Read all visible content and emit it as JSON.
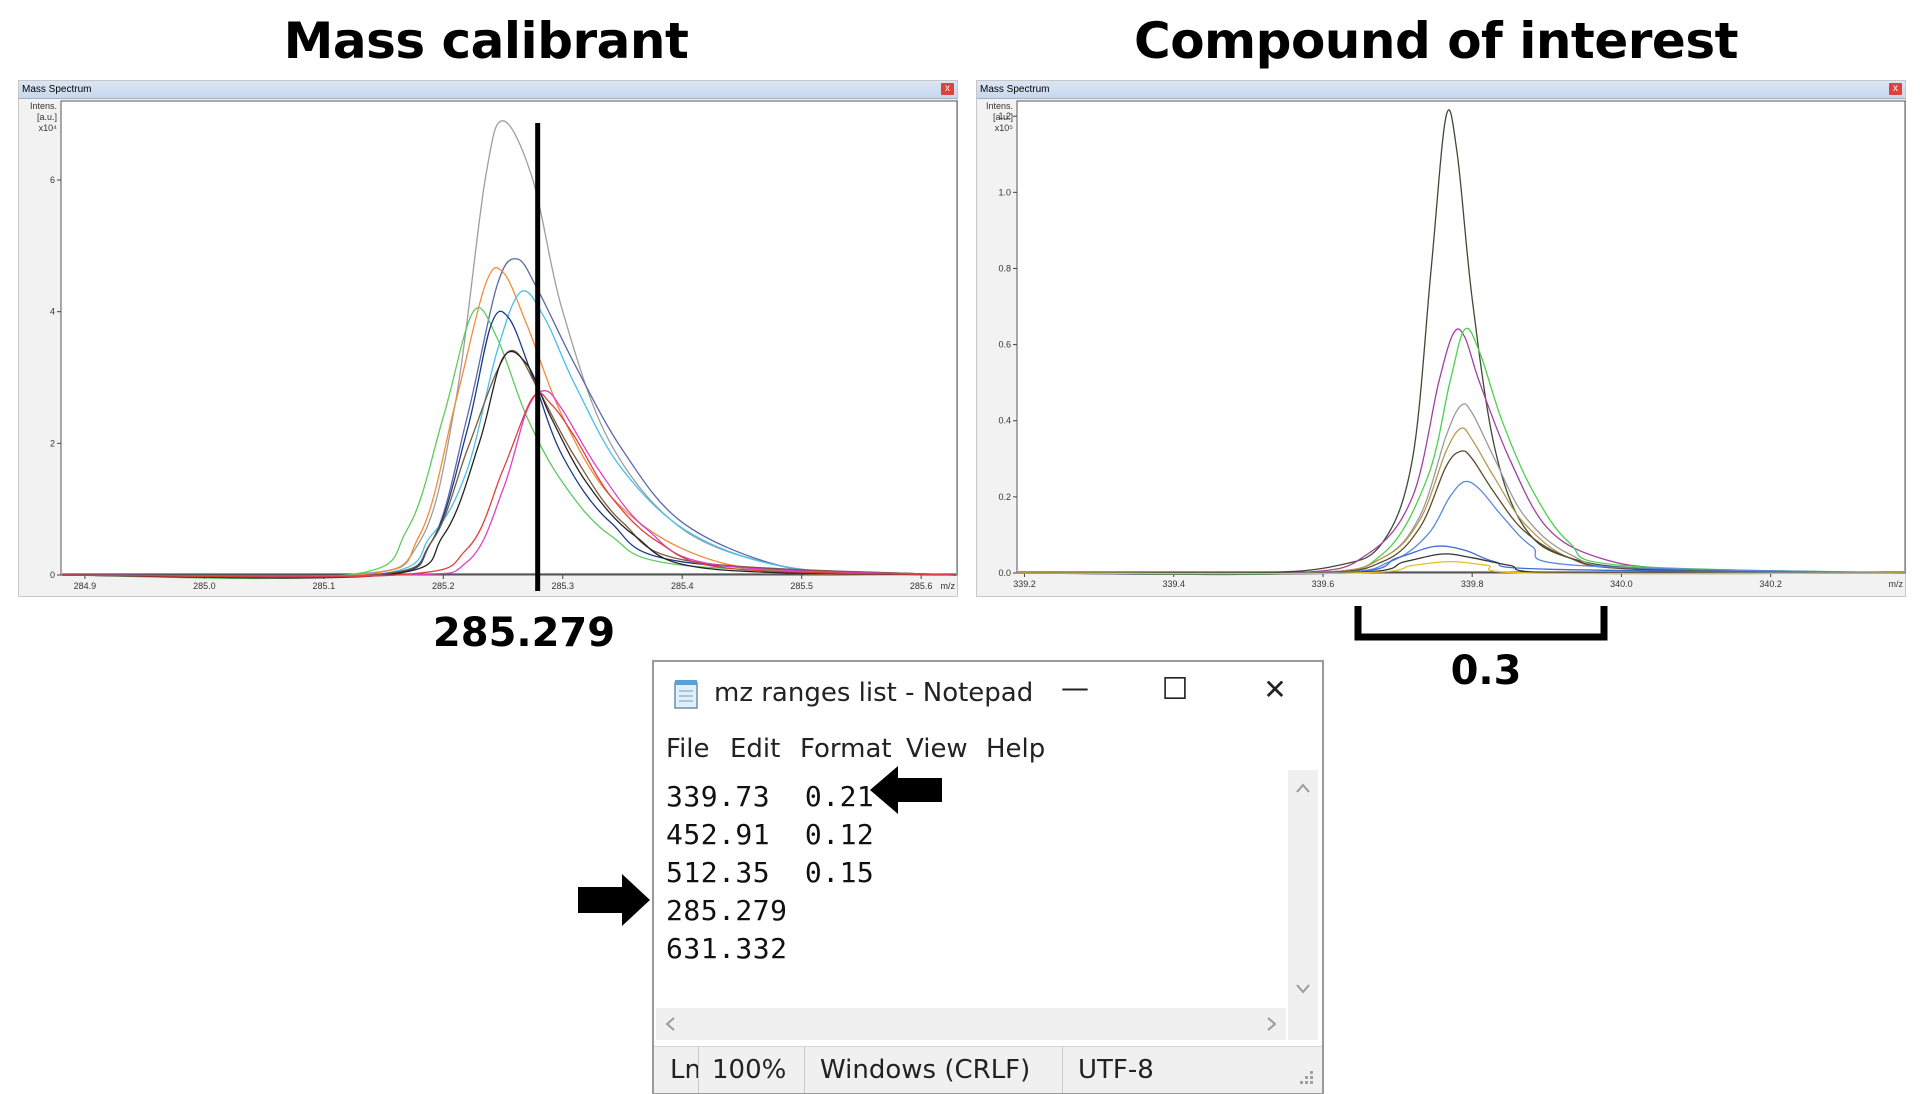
{
  "titles": {
    "left": "Mass calibrant",
    "right": "Compound of interest"
  },
  "left_panel": {
    "window_title": "Mass Spectrum",
    "close_glyph": "x",
    "y_label_lines": [
      "Intens.",
      "[a.u.]",
      "x10⁴"
    ],
    "x_unit": "m/z",
    "x_ticks": [
      "284.9",
      "285.0",
      "285.1",
      "285.2",
      "285.3",
      "285.4",
      "285.5",
      "285.6"
    ],
    "y_ticks": [
      "0",
      "2",
      "4",
      "6"
    ]
  },
  "right_panel": {
    "window_title": "Mass Spectrum",
    "close_glyph": "x",
    "y_label_lines": [
      "Intens.",
      "[a.u.]",
      "x10⁵"
    ],
    "x_unit": "m/z",
    "x_ticks": [
      "339.2",
      "339.4",
      "339.6",
      "339.8",
      "340.0",
      "340.2"
    ],
    "y_ticks": [
      "0.0",
      "0.2",
      "0.4",
      "0.6",
      "0.8",
      "1.0",
      "1.2"
    ]
  },
  "annotations": {
    "calibrant_value": "285.279",
    "width_value": "0.3"
  },
  "notepad": {
    "title": "mz ranges list - Notepad",
    "controls": {
      "minimize": "—",
      "maximize": "☐",
      "close": "✕"
    },
    "menu": [
      "File",
      "Edit",
      "Format",
      "View",
      "Help"
    ],
    "lines": [
      "339.73  0.21",
      "452.91  0.12",
      "512.35  0.15",
      "285.279",
      "631.332"
    ],
    "status": {
      "position": "Ln",
      "zoom": "100%",
      "line_ending": "Windows (CRLF)",
      "encoding": "UTF-8"
    }
  },
  "colors": {
    "marker_line": "#000000",
    "panel_bg": "#f2f2f2",
    "plot_bg": "#ffffff",
    "titlebar": "#c7d8ee",
    "close_button": "#d9453b"
  },
  "chart_data": [
    {
      "type": "line",
      "title": "Mass calibrant",
      "xlabel": "m/z",
      "ylabel": "Intens. [a.u.] x10^4",
      "xlim": [
        284.88,
        285.63
      ],
      "ylim": [
        0,
        7.2
      ],
      "marker_x": 285.279,
      "series": [
        {
          "color": "#9e9e9e",
          "values": [
            [
              285.12,
              0
            ],
            [
              285.18,
              0.5
            ],
            [
              285.21,
              2.6
            ],
            [
              285.235,
              6.0
            ],
            [
              285.25,
              6.9
            ],
            [
              285.275,
              6.0
            ],
            [
              285.3,
              4.0
            ],
            [
              285.34,
              2.0
            ],
            [
              285.4,
              0.7
            ],
            [
              285.48,
              0.15
            ],
            [
              285.56,
              0.03
            ]
          ]
        },
        {
          "color": "#5a6aa8",
          "values": [
            [
              285.14,
              0
            ],
            [
              285.19,
              0.5
            ],
            [
              285.22,
              2.4
            ],
            [
              285.245,
              4.4
            ],
            [
              285.262,
              4.8
            ],
            [
              285.28,
              4.3
            ],
            [
              285.31,
              3.2
            ],
            [
              285.35,
              1.9
            ],
            [
              285.4,
              0.8
            ],
            [
              285.48,
              0.15
            ],
            [
              285.56,
              0.02
            ]
          ]
        },
        {
          "color": "#f28c3a",
          "values": [
            [
              285.13,
              0
            ],
            [
              285.18,
              0.6
            ],
            [
              285.21,
              2.6
            ],
            [
              285.235,
              4.4
            ],
            [
              285.25,
              4.6
            ],
            [
              285.27,
              3.8
            ],
            [
              285.3,
              2.4
            ],
            [
              285.34,
              1.2
            ],
            [
              285.4,
              0.4
            ],
            [
              285.48,
              0.05
            ]
          ]
        },
        {
          "color": "#48c0ea",
          "values": [
            [
              285.14,
              0
            ],
            [
              285.19,
              0.6
            ],
            [
              285.22,
              1.6
            ],
            [
              285.245,
              3.4
            ],
            [
              285.265,
              4.3
            ],
            [
              285.285,
              3.9
            ],
            [
              285.31,
              2.9
            ],
            [
              285.35,
              1.6
            ],
            [
              285.41,
              0.6
            ],
            [
              285.5,
              0.08
            ]
          ]
        },
        {
          "color": "#5ccc5c",
          "values": [
            [
              285.12,
              0
            ],
            [
              285.17,
              0.7
            ],
            [
              285.2,
              2.4
            ],
            [
              285.225,
              4.0
            ],
            [
              285.245,
              3.6
            ],
            [
              285.27,
              2.4
            ],
            [
              285.3,
              1.4
            ],
            [
              285.34,
              0.6
            ],
            [
              285.4,
              0.15
            ]
          ]
        },
        {
          "color": "#1c3a8a",
          "values": [
            [
              285.14,
              0
            ],
            [
              285.19,
              0.5
            ],
            [
              285.22,
              2.2
            ],
            [
              285.24,
              3.8
            ],
            [
              285.255,
              3.9
            ],
            [
              285.275,
              3.0
            ],
            [
              285.3,
              1.8
            ],
            [
              285.34,
              0.8
            ],
            [
              285.4,
              0.2
            ]
          ]
        },
        {
          "color": "#7a5a3a",
          "values": [
            [
              285.14,
              0
            ],
            [
              285.19,
              0.5
            ],
            [
              285.22,
              1.9
            ],
            [
              285.245,
              3.1
            ],
            [
              285.26,
              3.4
            ],
            [
              285.28,
              2.8
            ],
            [
              285.31,
              1.8
            ],
            [
              285.35,
              0.8
            ],
            [
              285.41,
              0.2
            ]
          ]
        },
        {
          "color": "#222222",
          "values": [
            [
              285.15,
              0
            ],
            [
              285.2,
              0.6
            ],
            [
              285.23,
              2.0
            ],
            [
              285.25,
              3.3
            ],
            [
              285.27,
              3.2
            ],
            [
              285.29,
              2.4
            ],
            [
              285.32,
              1.4
            ],
            [
              285.36,
              0.6
            ],
            [
              285.42,
              0.1
            ]
          ]
        },
        {
          "color": "#e040c8",
          "values": [
            [
              285.16,
              0
            ],
            [
              285.22,
              0.2
            ],
            [
              285.25,
              1.3
            ],
            [
              285.27,
              2.5
            ],
            [
              285.285,
              2.8
            ],
            [
              285.3,
              2.5
            ],
            [
              285.33,
              1.6
            ],
            [
              285.37,
              0.7
            ],
            [
              285.43,
              0.15
            ]
          ]
        },
        {
          "color": "#d94040",
          "values": [
            [
              285.16,
              0
            ],
            [
              285.22,
              0.4
            ],
            [
              285.25,
              1.6
            ],
            [
              285.275,
              2.7
            ],
            [
              285.29,
              2.6
            ],
            [
              285.31,
              2.1
            ],
            [
              285.34,
              1.2
            ],
            [
              285.38,
              0.5
            ],
            [
              285.44,
              0.1
            ]
          ]
        }
      ]
    },
    {
      "type": "line",
      "title": "Compound of interest",
      "xlabel": "m/z",
      "ylabel": "Intens. [a.u.] x10^5",
      "xlim": [
        339.19,
        340.38
      ],
      "ylim": [
        0,
        1.24
      ],
      "width_bracket": [
        339.65,
        339.95
      ],
      "series": [
        {
          "color": "#3f4a33",
          "values": [
            [
              339.5,
              0
            ],
            [
              339.62,
              0.02
            ],
            [
              339.68,
              0.08
            ],
            [
              339.72,
              0.3
            ],
            [
              339.745,
              0.8
            ],
            [
              339.765,
              1.2
            ],
            [
              339.78,
              1.1
            ],
            [
              339.8,
              0.72
            ],
            [
              339.83,
              0.33
            ],
            [
              339.87,
              0.12
            ],
            [
              339.93,
              0.04
            ],
            [
              340.05,
              0.01
            ]
          ]
        },
        {
          "color": "#a040a0",
          "values": [
            [
              339.56,
              0
            ],
            [
              339.66,
              0.05
            ],
            [
              339.72,
              0.2
            ],
            [
              339.755,
              0.5
            ],
            [
              339.775,
              0.63
            ],
            [
              339.79,
              0.62
            ],
            [
              339.81,
              0.5
            ],
            [
              339.85,
              0.3
            ],
            [
              339.9,
              0.12
            ],
            [
              339.97,
              0.04
            ],
            [
              340.08,
              0.01
            ]
          ]
        },
        {
          "color": "#4cd04c",
          "values": [
            [
              339.58,
              0
            ],
            [
              339.68,
              0.05
            ],
            [
              339.74,
              0.25
            ],
            [
              339.77,
              0.5
            ],
            [
              339.79,
              0.64
            ],
            [
              339.81,
              0.58
            ],
            [
              339.84,
              0.4
            ],
            [
              339.88,
              0.22
            ],
            [
              339.93,
              0.08
            ],
            [
              340.0,
              0.02
            ]
          ]
        },
        {
          "color": "#9a9a9a",
          "values": [
            [
              339.58,
              0
            ],
            [
              339.68,
              0.04
            ],
            [
              339.73,
              0.15
            ],
            [
              339.765,
              0.36
            ],
            [
              339.785,
              0.44
            ],
            [
              339.8,
              0.42
            ],
            [
              339.83,
              0.3
            ],
            [
              339.87,
              0.15
            ],
            [
              339.93,
              0.05
            ],
            [
              340.02,
              0.01
            ]
          ]
        },
        {
          "color": "#b89a50",
          "values": [
            [
              339.58,
              0
            ],
            [
              339.68,
              0.04
            ],
            [
              339.73,
              0.14
            ],
            [
              339.765,
              0.32
            ],
            [
              339.785,
              0.38
            ],
            [
              339.8,
              0.35
            ],
            [
              339.83,
              0.25
            ],
            [
              339.87,
              0.13
            ],
            [
              339.93,
              0.04
            ],
            [
              340.02,
              0.01
            ]
          ]
        },
        {
          "color": "#5a4a2a",
          "values": [
            [
              339.58,
              0
            ],
            [
              339.68,
              0.03
            ],
            [
              339.73,
              0.12
            ],
            [
              339.765,
              0.28
            ],
            [
              339.785,
              0.32
            ],
            [
              339.8,
              0.3
            ],
            [
              339.83,
              0.21
            ],
            [
              339.87,
              0.11
            ],
            [
              339.93,
              0.04
            ],
            [
              340.02,
              0.01
            ]
          ]
        },
        {
          "color": "#5a88e0",
          "values": [
            [
              339.6,
              0
            ],
            [
              339.69,
              0.03
            ],
            [
              339.74,
              0.1
            ],
            [
              339.77,
              0.2
            ],
            [
              339.79,
              0.24
            ],
            [
              339.81,
              0.22
            ],
            [
              339.84,
              0.15
            ],
            [
              339.88,
              0.07
            ],
            [
              339.94,
              0.02
            ]
          ]
        },
        {
          "color": "#3f6ad8",
          "values": [
            [
              339.62,
              0
            ],
            [
              339.7,
              0.04
            ],
            [
              339.75,
              0.07
            ],
            [
              339.79,
              0.06
            ],
            [
              339.83,
              0.03
            ],
            [
              339.9,
              0.01
            ]
          ]
        },
        {
          "color": "#333333",
          "values": [
            [
              339.63,
              0
            ],
            [
              339.71,
              0.03
            ],
            [
              339.76,
              0.05
            ],
            [
              339.8,
              0.04
            ],
            [
              339.85,
              0.02
            ],
            [
              339.92,
              0.0
            ]
          ]
        },
        {
          "color": "#e8c020",
          "values": [
            [
              339.64,
              0
            ],
            [
              339.72,
              0.02
            ],
            [
              339.77,
              0.03
            ],
            [
              339.82,
              0.02
            ],
            [
              339.88,
              0.0
            ]
          ]
        }
      ]
    }
  ]
}
